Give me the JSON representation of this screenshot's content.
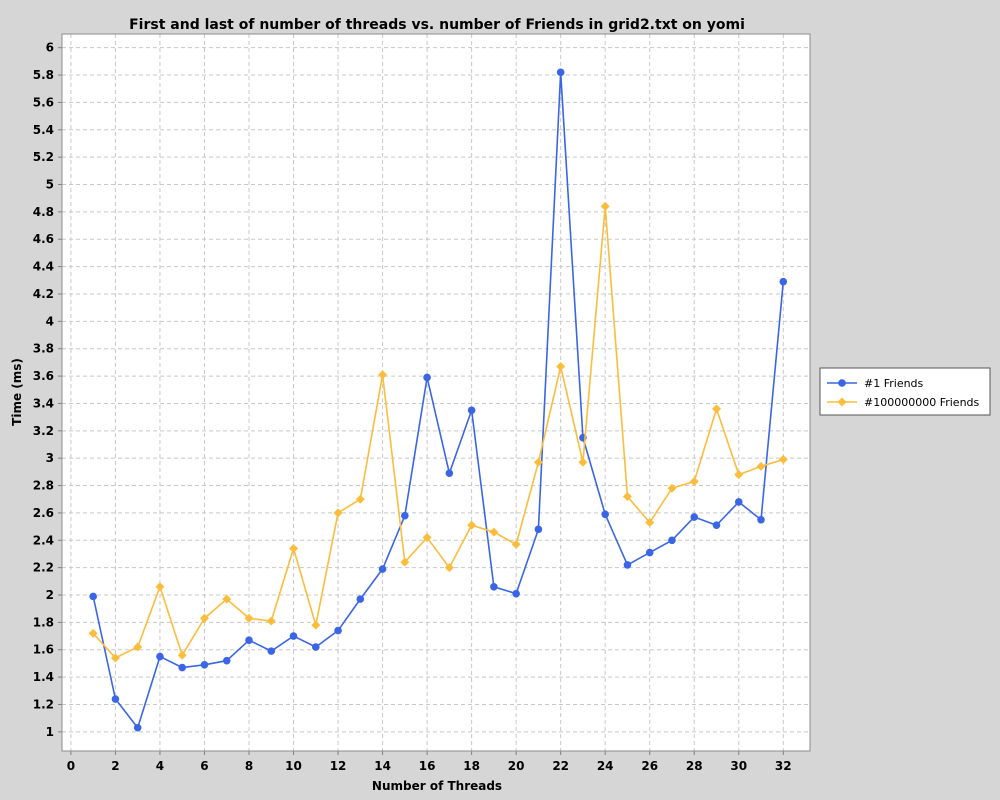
{
  "colors": {
    "background": "#d6d6d6",
    "plot_background": "#ffffff",
    "series1": "#3a66e6",
    "series2": "#fbbd3c"
  },
  "chart_data": {
    "type": "line",
    "title": "First and last of number of threads vs. number of Friends in grid2.txt on yomi",
    "xlabel": "Number of Threads",
    "ylabel": "Time (ms)",
    "xlim": [
      -0.4,
      33.2
    ],
    "ylim": [
      0.86,
      6.1
    ],
    "xticks": [
      0,
      2,
      4,
      6,
      8,
      10,
      12,
      14,
      16,
      18,
      20,
      22,
      24,
      26,
      28,
      30,
      32
    ],
    "yticks": [
      1,
      1.2,
      1.4,
      1.6,
      1.8,
      2,
      2.2,
      2.4,
      2.6,
      2.8,
      3,
      3.2,
      3.4,
      3.6,
      3.8,
      4,
      4.2,
      4.4,
      4.6,
      4.8,
      5,
      5.2,
      5.4,
      5.6,
      5.8,
      6
    ],
    "grid": true,
    "legend_position": "right",
    "x": [
      1,
      2,
      3,
      4,
      5,
      6,
      7,
      8,
      9,
      10,
      11,
      12,
      13,
      14,
      15,
      16,
      17,
      18,
      19,
      20,
      21,
      22,
      23,
      24,
      25,
      26,
      27,
      28,
      29,
      30,
      31,
      32
    ],
    "series": [
      {
        "name": "#1 Friends",
        "marker": "circle",
        "color": "#3a66e6",
        "values": [
          1.99,
          1.24,
          1.03,
          1.55,
          1.47,
          1.49,
          1.52,
          1.67,
          1.59,
          1.7,
          1.62,
          1.74,
          1.97,
          2.19,
          2.58,
          3.59,
          2.89,
          3.35,
          2.06,
          2.01,
          2.48,
          5.82,
          3.15,
          2.59,
          2.22,
          2.31,
          2.4,
          2.57,
          2.51,
          2.68,
          2.55,
          4.29
        ]
      },
      {
        "name": "#100000000 Friends",
        "marker": "diamond",
        "color": "#fbbd3c",
        "values": [
          1.72,
          1.54,
          1.62,
          2.06,
          1.56,
          1.83,
          1.97,
          1.83,
          1.81,
          2.34,
          1.78,
          2.6,
          2.7,
          3.61,
          2.24,
          2.42,
          2.2,
          2.51,
          2.46,
          2.37,
          2.97,
          3.67,
          2.97,
          4.84,
          2.72,
          2.53,
          2.78,
          2.83,
          3.36,
          2.88,
          2.94,
          2.99
        ]
      }
    ]
  }
}
